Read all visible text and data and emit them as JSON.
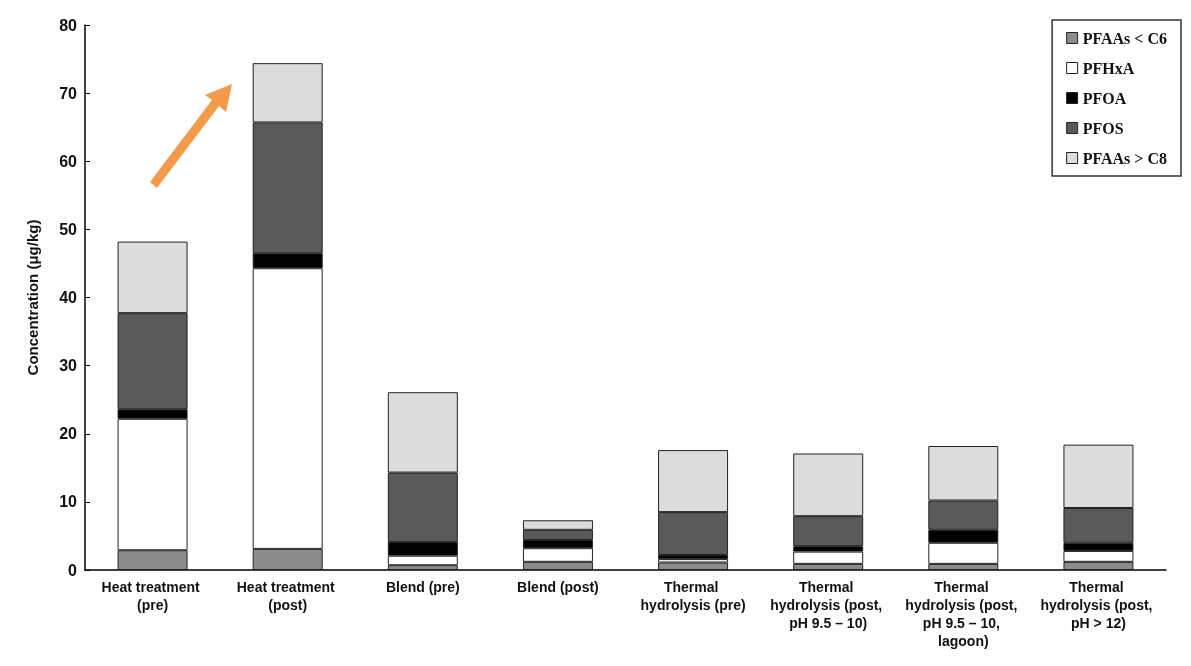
{
  "chart_data": {
    "type": "bar",
    "stacked": true,
    "ylabel": "Concentration (μg/kg)",
    "categories": [
      "Heat treatment (pre)",
      "Heat treatment (post)",
      "Blend (pre)",
      "Blend (post)",
      "Thermal hydrolysis (pre)",
      "Thermal hydrolysis (post, pH 9.5 – 10)",
      "Thermal hydrolysis (post, pH 9.5 – 10, lagoon)",
      "Thermal hydrolysis (post, pH > 12)"
    ],
    "series": [
      {
        "name": "PFAAs < C6",
        "color": "#8c8c8c",
        "values": [
          2.9,
          3.1,
          0.7,
          1.2,
          1.1,
          0.9,
          0.9,
          1.2
        ]
      },
      {
        "name": "PFHxA",
        "color": "#ffffff",
        "values": [
          19.3,
          41.2,
          1.4,
          2.0,
          0.5,
          1.8,
          3.1,
          1.6
        ]
      },
      {
        "name": "PFOA",
        "color": "#000000",
        "values": [
          1.4,
          2.2,
          2.0,
          1.2,
          0.6,
          0.8,
          1.9,
          1.2
        ]
      },
      {
        "name": "PFOS",
        "color": "#5a5a5a",
        "values": [
          14.1,
          19.2,
          10.2,
          1.5,
          6.3,
          4.4,
          4.3,
          5.1
        ]
      },
      {
        "name": "PFAAs > C8",
        "color": "#dcdcdc",
        "values": [
          10.5,
          8.7,
          11.8,
          1.4,
          9.1,
          9.2,
          8.0,
          9.3
        ]
      }
    ],
    "ylim": [
      0,
      80
    ],
    "yticks": [
      0,
      10,
      20,
      30,
      40,
      50,
      60,
      70,
      80
    ],
    "grid": false,
    "legend": "top right"
  }
}
